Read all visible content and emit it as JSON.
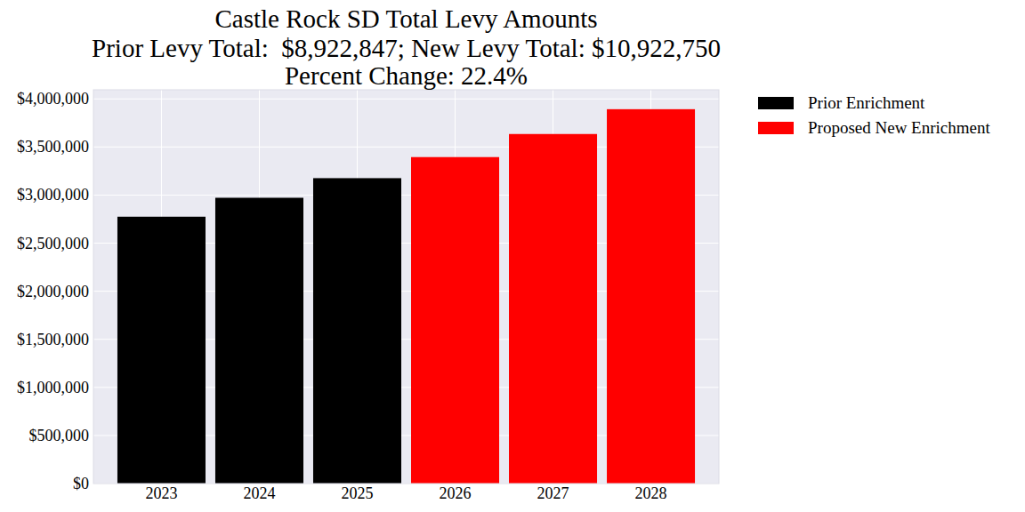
{
  "chart_data": {
    "type": "bar",
    "title": [
      "Castle Rock SD Total Levy Amounts",
      "Prior Levy Total:  $8,922,847; New Levy Total: $10,922,750",
      "Percent Change: 22.4%"
    ],
    "categories": [
      "2023",
      "2024",
      "2025",
      "2026",
      "2027",
      "2028"
    ],
    "series": [
      {
        "name": "Prior Enrichment",
        "color": "#000000",
        "values": [
          2775000,
          2972000,
          3176000,
          null,
          null,
          null
        ]
      },
      {
        "name": "Proposed New Enrichment",
        "color": "#ff0000",
        "values": [
          null,
          null,
          null,
          3395000,
          3635000,
          3893000
        ]
      }
    ],
    "ylim": [
      0,
      4095000
    ],
    "yticks": [
      {
        "value": 0,
        "label": "$0"
      },
      {
        "value": 500000,
        "label": "$500,000"
      },
      {
        "value": 1000000,
        "label": "$1,000,000"
      },
      {
        "value": 1500000,
        "label": "$1,500,000"
      },
      {
        "value": 2000000,
        "label": "$2,000,000"
      },
      {
        "value": 2500000,
        "label": "$2,500,000"
      },
      {
        "value": 3000000,
        "label": "$3,000,000"
      },
      {
        "value": 3500000,
        "label": "$3,500,000"
      },
      {
        "value": 4000000,
        "label": "$4,000,000"
      }
    ],
    "grid": true,
    "legend": "outside-right"
  }
}
